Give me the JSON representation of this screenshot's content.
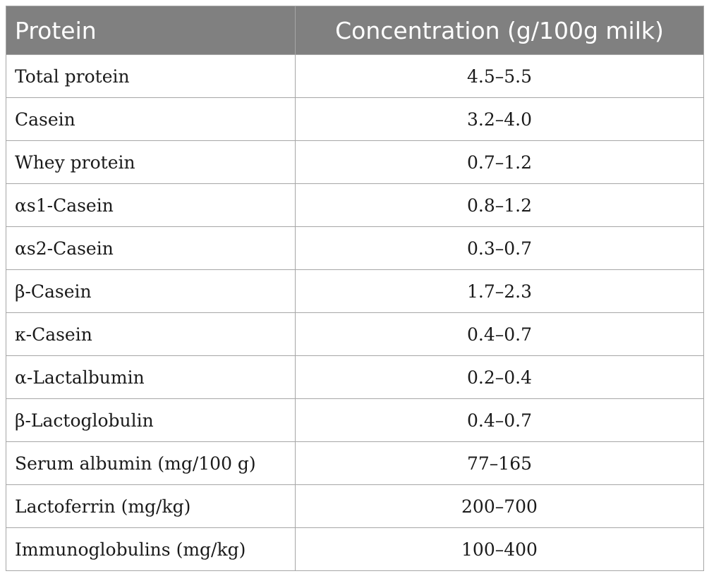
{
  "table": {
    "headers": {
      "protein": "Protein",
      "concentration": "Concentration (g/100g milk)"
    },
    "rows": [
      {
        "protein": "Total protein",
        "concentration": "4.5–5.5"
      },
      {
        "protein": "Casein",
        "concentration": "3.2–4.0"
      },
      {
        "protein": "Whey protein",
        "concentration": "0.7–1.2"
      },
      {
        "protein": "αs1-Casein",
        "concentration": "0.8–1.2"
      },
      {
        "protein": "αs2-Casein",
        "concentration": "0.3–0.7"
      },
      {
        "protein": "β-Casein",
        "concentration": "1.7–2.3"
      },
      {
        "protein": "κ-Casein",
        "concentration": "0.4–0.7"
      },
      {
        "protein": "α-Lactalbumin",
        "concentration": "0.2–0.4"
      },
      {
        "protein": "β-Lactoglobulin",
        "concentration": "0.4–0.7"
      },
      {
        "protein": "Serum albumin (mg/100 g)",
        "concentration": "77–165"
      },
      {
        "protein": "Lactoferrin (mg/kg)",
        "concentration": "200–700"
      },
      {
        "protein": "Immunoglobulins (mg/kg)",
        "concentration": "100–400"
      }
    ]
  },
  "colors": {
    "header_bg": "#808080",
    "header_text": "#ffffff",
    "border": "#a6a6a6",
    "body_text": "#1a1a1a"
  }
}
